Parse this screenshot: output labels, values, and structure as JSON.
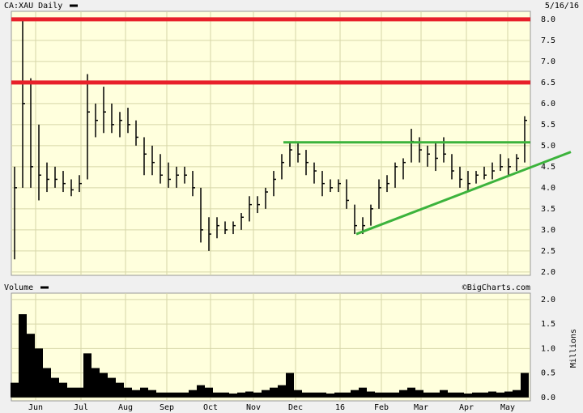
{
  "chart_data": {
    "type": "ohlc",
    "title": "CA:XAU Daily",
    "date": "5/16/16",
    "copyright": "©BigCharts.com",
    "color": "#000000",
    "high": [
      4.5,
      8.0,
      6.6,
      5.5,
      4.6,
      4.5,
      4.4,
      4.2,
      4.3,
      6.7,
      6.0,
      6.4,
      6.0,
      5.8,
      5.9,
      5.6,
      5.2,
      5.0,
      4.8,
      4.6,
      4.5,
      4.5,
      4.4,
      4.0,
      3.3,
      3.3,
      3.2,
      3.2,
      3.4,
      3.8,
      3.8,
      4.0,
      4.4,
      4.8,
      5.1,
      5.1,
      4.9,
      4.6,
      4.4,
      4.2,
      4.2,
      4.2,
      3.6,
      3.3,
      3.6,
      4.2,
      4.3,
      4.6,
      4.7,
      5.4,
      5.2,
      5.0,
      5.1,
      5.2,
      4.8,
      4.5,
      4.4,
      4.4,
      4.5,
      4.6,
      4.8,
      4.7,
      4.8,
      5.7
    ],
    "low": [
      2.3,
      4.0,
      4.0,
      3.7,
      3.9,
      4.0,
      3.9,
      3.8,
      3.9,
      4.2,
      5.2,
      5.3,
      5.3,
      5.2,
      5.3,
      5.0,
      4.3,
      4.3,
      4.1,
      4.0,
      4.0,
      4.1,
      3.8,
      2.7,
      2.5,
      2.8,
      2.9,
      2.9,
      3.0,
      3.2,
      3.4,
      3.5,
      3.8,
      4.2,
      4.5,
      4.6,
      4.3,
      4.1,
      3.8,
      3.9,
      3.9,
      3.5,
      2.9,
      2.9,
      3.1,
      3.5,
      3.9,
      4.0,
      4.2,
      4.6,
      4.6,
      4.5,
      4.4,
      4.6,
      4.2,
      4.0,
      3.9,
      4.1,
      4.2,
      4.2,
      4.4,
      4.3,
      4.4,
      4.6
    ],
    "close": [
      4.0,
      6.0,
      4.5,
      4.3,
      4.2,
      4.2,
      4.1,
      3.95,
      4.1,
      5.8,
      5.6,
      5.8,
      5.5,
      5.6,
      5.5,
      5.2,
      4.8,
      4.6,
      4.3,
      4.2,
      4.3,
      4.3,
      4.0,
      3.0,
      2.9,
      3.1,
      3.0,
      3.1,
      3.3,
      3.6,
      3.6,
      3.9,
      4.2,
      4.6,
      4.9,
      4.8,
      4.6,
      4.4,
      4.1,
      4.0,
      4.1,
      3.7,
      3.1,
      3.1,
      3.5,
      4.0,
      4.1,
      4.5,
      4.6,
      5.1,
      4.9,
      4.8,
      4.7,
      4.8,
      4.4,
      4.2,
      4.1,
      4.3,
      4.3,
      4.4,
      4.5,
      4.5,
      4.7,
      5.6
    ],
    "xlim": [
      -0.4,
      63.7
    ],
    "xticks": [
      {
        "value": 2.6,
        "label": "Jun"
      },
      {
        "value": 8.2,
        "label": "Jul"
      },
      {
        "value": 13.7,
        "label": "Aug"
      },
      {
        "value": 18.8,
        "label": "Sep"
      },
      {
        "value": 24.2,
        "label": "Oct"
      },
      {
        "value": 29.5,
        "label": "Nov"
      },
      {
        "value": 34.7,
        "label": "Dec"
      },
      {
        "value": 40.2,
        "label": "16"
      },
      {
        "value": 45.3,
        "label": "Feb"
      },
      {
        "value": 50.2,
        "label": "Mar"
      },
      {
        "value": 55.8,
        "label": "Apr"
      },
      {
        "value": 60.9,
        "label": "May"
      }
    ],
    "ylim": [
      1.92,
      8.19
    ],
    "yticks": [
      {
        "value": 2,
        "label": "2.0"
      },
      {
        "value": 2.5,
        "label": "2.5"
      },
      {
        "value": 3,
        "label": "3.0"
      },
      {
        "value": 3.5,
        "label": "3.5"
      },
      {
        "value": 4,
        "label": "4.0"
      },
      {
        "value": 4.5,
        "label": "4.5"
      },
      {
        "value": 5,
        "label": "5.0"
      },
      {
        "value": 5.5,
        "label": "5.5"
      },
      {
        "value": 6,
        "label": "6.0"
      },
      {
        "value": 6.5,
        "label": "6.5"
      },
      {
        "value": 7,
        "label": "7.0"
      },
      {
        "value": 7.5,
        "label": "7.5"
      },
      {
        "value": 8,
        "label": "8.0"
      }
    ],
    "grid": true,
    "levels": [
      {
        "y": 8.0,
        "color": "#e8202a"
      },
      {
        "y": 6.5,
        "color": "#e8202a"
      }
    ],
    "trendlines": [
      {
        "x": [
          33.2,
          63.7
        ],
        "y": [
          5.08,
          5.08
        ],
        "color": "#3cb33c"
      },
      {
        "x": [
          42.2,
          68.7
        ],
        "y": [
          2.9,
          4.85
        ],
        "color": "#3cb33c"
      }
    ],
    "volume": {
      "label": "Volume",
      "axis_label": "Millions",
      "color": "#000000",
      "values": [
        0.3,
        1.7,
        1.3,
        1.0,
        0.6,
        0.4,
        0.3,
        0.2,
        0.2,
        0.9,
        0.6,
        0.5,
        0.4,
        0.3,
        0.2,
        0.15,
        0.2,
        0.15,
        0.1,
        0.1,
        0.1,
        0.1,
        0.15,
        0.25,
        0.2,
        0.1,
        0.1,
        0.08,
        0.1,
        0.12,
        0.1,
        0.15,
        0.2,
        0.25,
        0.5,
        0.15,
        0.1,
        0.1,
        0.1,
        0.08,
        0.1,
        0.1,
        0.15,
        0.2,
        0.12,
        0.1,
        0.1,
        0.1,
        0.15,
        0.2,
        0.15,
        0.1,
        0.1,
        0.15,
        0.1,
        0.1,
        0.08,
        0.1,
        0.1,
        0.12,
        0.1,
        0.12,
        0.15,
        0.5
      ],
      "ylim": [
        -0.07,
        2.13
      ],
      "yticks": [
        {
          "value": 0,
          "label": "0.0"
        },
        {
          "value": 0.5,
          "label": "0.5"
        },
        {
          "value": 1,
          "label": "1.0"
        },
        {
          "value": 1.5,
          "label": "1.5"
        },
        {
          "value": 2,
          "label": "2.0"
        }
      ]
    }
  }
}
